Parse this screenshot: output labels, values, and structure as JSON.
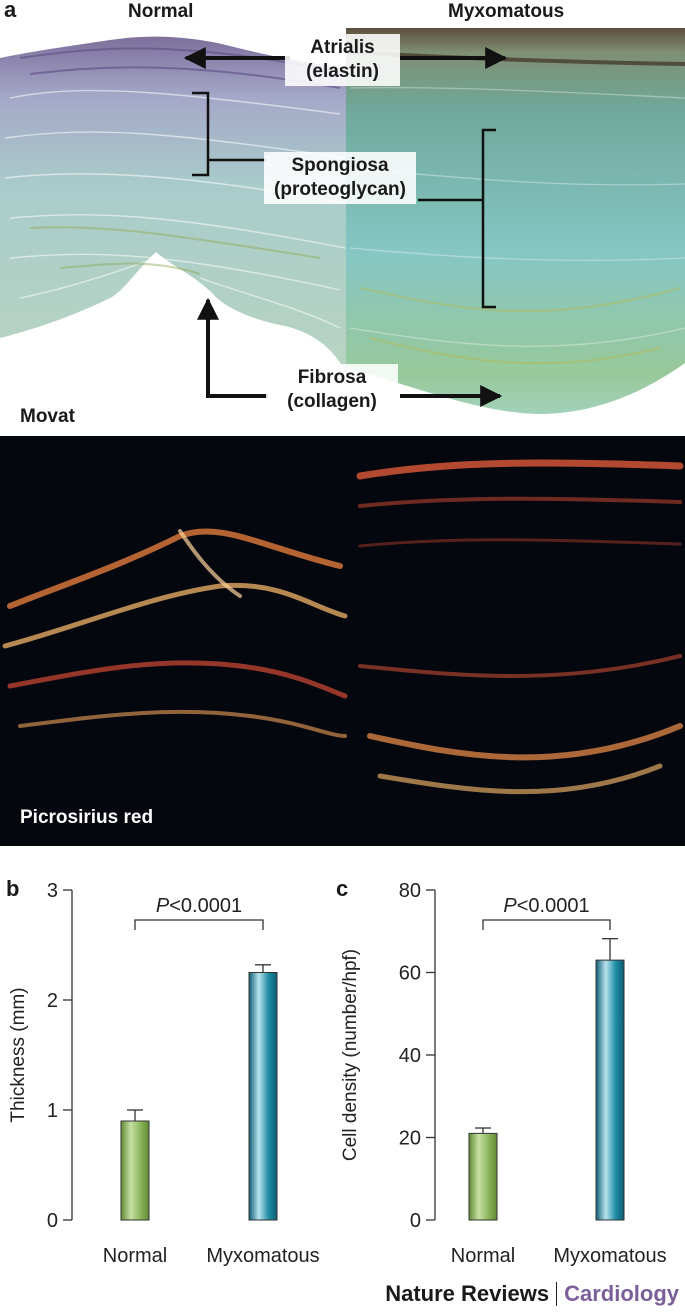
{
  "panel_a": {
    "letter": "a",
    "col_left": "Normal",
    "col_right": "Myxomatous",
    "atrialis": [
      "Atrialis",
      "(elastin)"
    ],
    "spongiosa": [
      "Spongiosa",
      "(proteoglycan)"
    ],
    "fibrosa": [
      "Fibrosa",
      "(collagen)"
    ],
    "stain_top": "Movat",
    "stain_bottom": "Picrosirius red"
  },
  "colors": {
    "normal_bar": "#8ab55a",
    "myxomatous_bar": "#1e8ea5",
    "brand_second": "#7b5f99"
  },
  "chart_data": [
    {
      "panel": "b",
      "type": "bar",
      "categories": [
        "Normal",
        "Myxomatous"
      ],
      "values": [
        0.9,
        2.25
      ],
      "errors": [
        0.1,
        0.07
      ],
      "ylabel": "Thickness (mm)",
      "ylim": [
        0,
        3
      ],
      "yticks": [
        "0",
        "1",
        "2",
        "3"
      ],
      "annotation_p": "P",
      "annotation_rest": "<0.0001"
    },
    {
      "panel": "c",
      "type": "bar",
      "categories": [
        "Normal",
        "Myxomatous"
      ],
      "values": [
        21,
        63
      ],
      "errors": [
        1.3,
        5.2
      ],
      "ylabel": "Cell density (number/hpf)",
      "ylim": [
        0,
        80
      ],
      "yticks": [
        "0",
        "20",
        "40",
        "60",
        "80"
      ],
      "annotation_p": "P",
      "annotation_rest": "<0.0001"
    }
  ],
  "footer": {
    "journal": "Nature Reviews",
    "section": "Cardiology"
  }
}
